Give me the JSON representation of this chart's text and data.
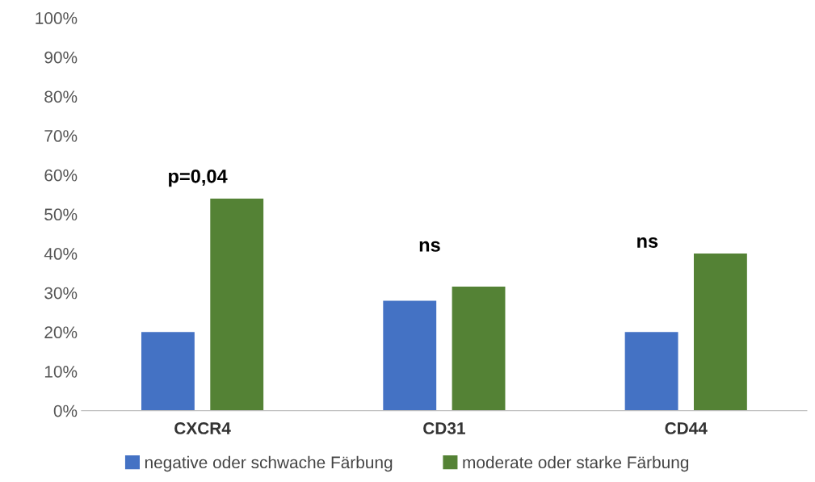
{
  "chart_data": {
    "type": "bar",
    "categories": [
      "CXCR4",
      "CD31",
      "CD44"
    ],
    "series": [
      {
        "name": "negative oder schwache Färbung",
        "color": "#4472c4",
        "values": [
          20,
          28,
          20
        ]
      },
      {
        "name": "moderate oder starke Färbung",
        "color": "#548235",
        "values": [
          54,
          31.6,
          40
        ]
      }
    ],
    "ylim": [
      0,
      100
    ],
    "yticks": [
      {
        "value": 0,
        "label": "0%"
      },
      {
        "value": 10,
        "label": "10%"
      },
      {
        "value": 20,
        "label": "20%"
      },
      {
        "value": 30,
        "label": "30%"
      },
      {
        "value": 40,
        "label": "40%"
      },
      {
        "value": 50,
        "label": "50%"
      },
      {
        "value": 60,
        "label": "60%"
      },
      {
        "value": 70,
        "label": "70%"
      },
      {
        "value": 80,
        "label": "80%"
      },
      {
        "value": 90,
        "label": "90%"
      },
      {
        "value": 100,
        "label": "100%"
      }
    ],
    "annotations": [
      "p=0,04",
      "ns",
      "ns"
    ],
    "grid": false,
    "legend": "bottom"
  }
}
